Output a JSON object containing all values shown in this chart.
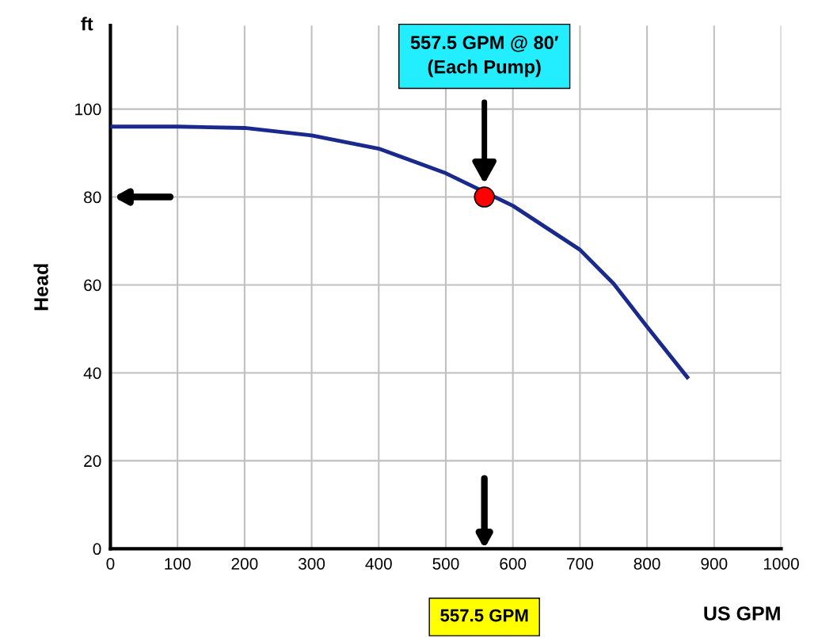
{
  "chart_data": {
    "type": "line",
    "xlabel": "US GPM",
    "ylabel": "Head",
    "annotations": [
      "ft",
      "557.5 GPM @ 80′\n(Each Pump)",
      "557.5 GPM"
    ],
    "series": [
      {
        "color": "#1a2a8c",
        "x": [
          0,
          100,
          200,
          300,
          400,
          500,
          600,
          700,
          750,
          800,
          860
        ],
        "values": [
          96,
          96,
          95.7,
          94,
          91,
          85.4,
          78,
          68,
          60.3,
          50.5,
          39
        ],
        "marker": "none"
      },
      {
        "type": "scatter",
        "color": "#ff0000",
        "x": [
          557.5
        ],
        "values": [
          80
        ],
        "marker": "circle"
      }
    ],
    "xlim": [
      0,
      1000
    ],
    "ylim": [
      0,
      119
    ],
    "xticks": [
      0,
      100,
      200,
      300,
      400,
      500,
      600,
      700,
      800,
      900,
      1000
    ],
    "yticks": [
      0,
      20,
      40,
      60,
      80,
      100
    ],
    "grid": true
  }
}
